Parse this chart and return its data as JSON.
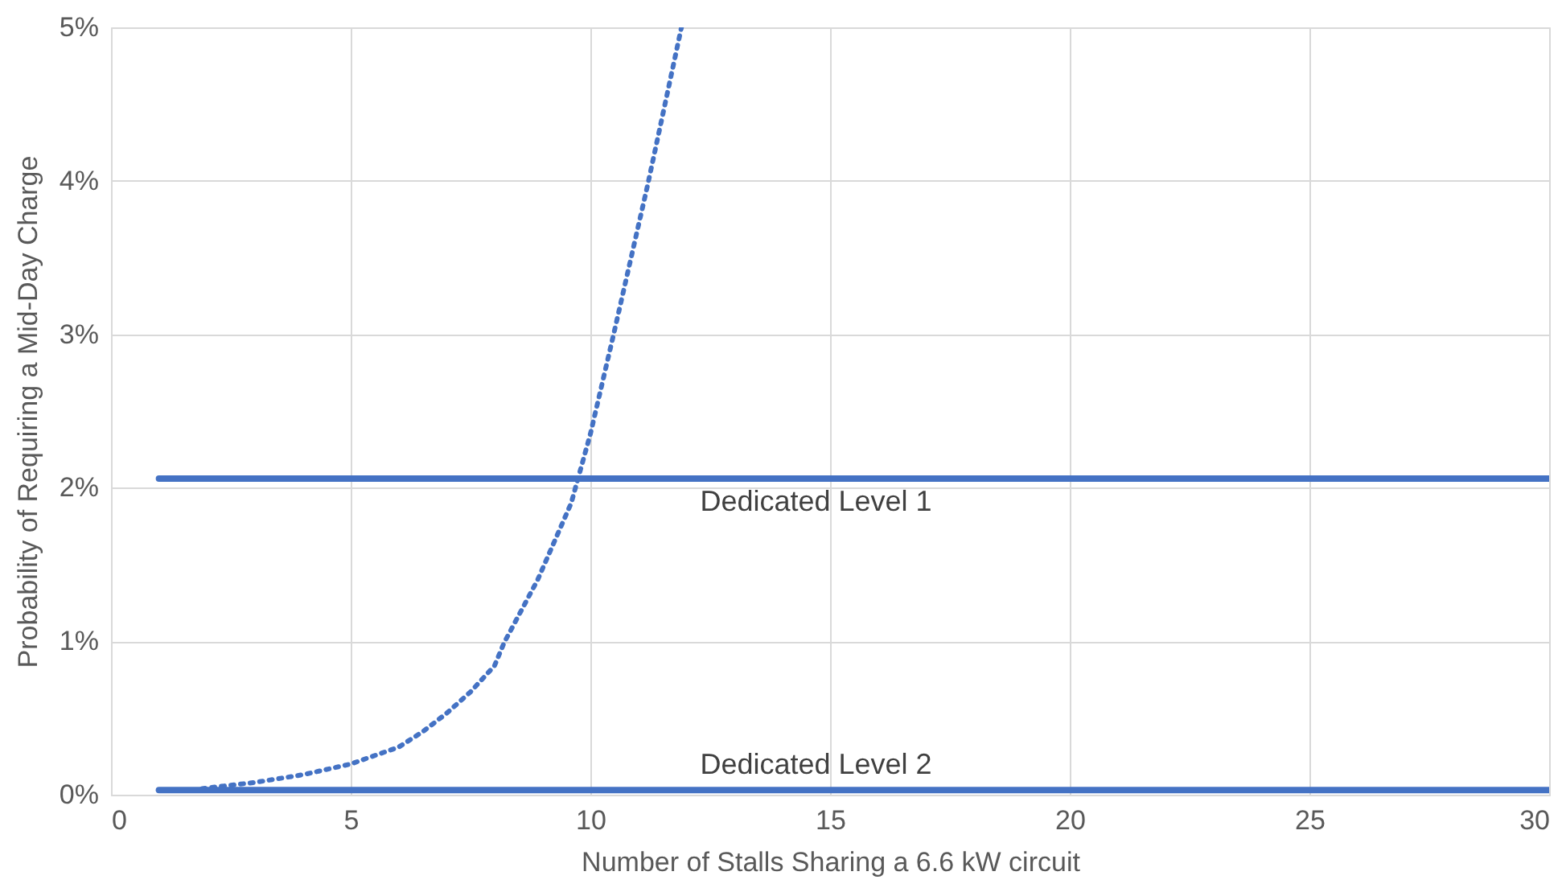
{
  "chart_data": {
    "type": "line",
    "xlabel": "Number of Stalls Sharing a 6.6 kW circuit",
    "ylabel": "Probability of Requiring a Mid-Day Charge",
    "series": [
      {
        "color": "#4472c4",
        "line_style": "dotted",
        "x": [
          1.9,
          3,
          4,
          5,
          6,
          6.5,
          7,
          7.5,
          8,
          8.2,
          8.9,
          9.6,
          10,
          10.5,
          11.2,
          11.9
        ],
        "values": [
          0.04,
          0.08,
          0.13,
          0.2,
          0.31,
          0.41,
          0.53,
          0.67,
          0.84,
          0.99,
          1.4,
          1.9,
          2.35,
          3.02,
          3.98,
          5.0
        ]
      },
      {
        "name": "Dedicated Level 1",
        "color": "#4472c4",
        "line_style": "solid",
        "x": [
          1,
          30
        ],
        "values": [
          2.06,
          2.06
        ]
      },
      {
        "name": "Dedicated Level 2",
        "color": "#4472c4",
        "line_style": "solid",
        "x": [
          1,
          30
        ],
        "values": [
          0.03,
          0.03
        ]
      }
    ],
    "xlim": [
      0,
      30
    ],
    "xticks": [
      0,
      5,
      10,
      15,
      20,
      25,
      30
    ],
    "ylim": [
      0,
      5
    ],
    "yticks": [
      {
        "value": 0,
        "label": "0%"
      },
      {
        "value": 1,
        "label": "1%"
      },
      {
        "value": 2,
        "label": "2%"
      },
      {
        "value": 3,
        "label": "3%"
      },
      {
        "value": 4,
        "label": "4%"
      },
      {
        "value": 5,
        "label": "5%"
      }
    ],
    "grid": true
  }
}
